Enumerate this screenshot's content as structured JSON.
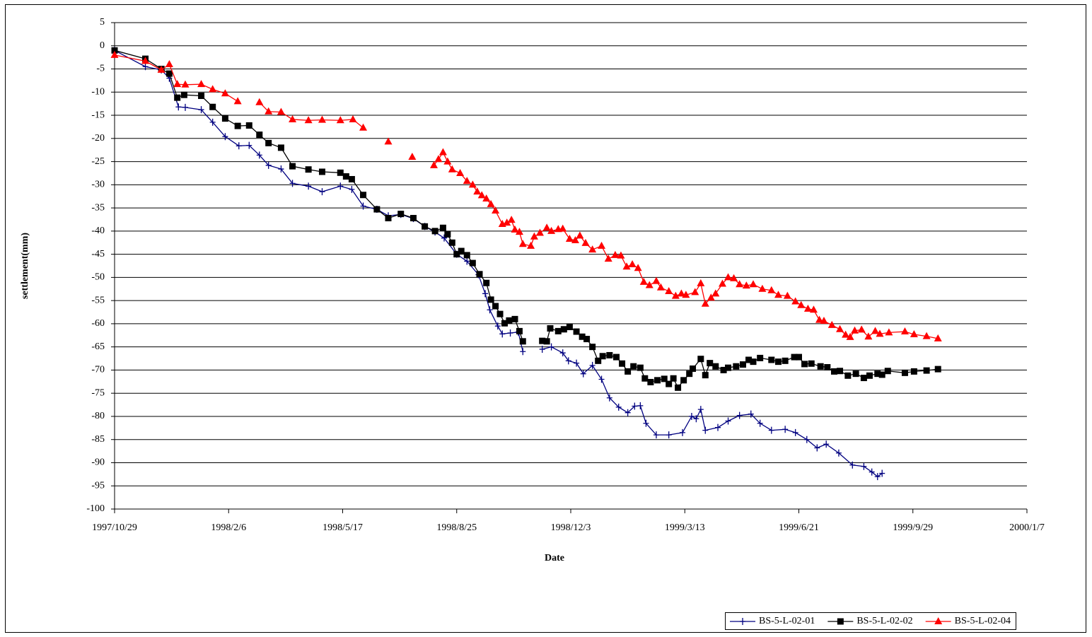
{
  "chart_data": {
    "type": "line",
    "xlabel": "Date",
    "ylabel": "settlement(mm)",
    "xlim": [
      "1997/10/29",
      "2000/1/7"
    ],
    "xticks": [
      "1997/10/29",
      "1998/2/6",
      "1998/5/17",
      "1998/8/25",
      "1998/12/3",
      "1999/3/13",
      "1999/6/21",
      "1999/9/29",
      "2000/1/7"
    ],
    "ylim": [
      -100,
      5
    ],
    "yticks": [
      5,
      0,
      -5,
      -10,
      -15,
      -20,
      -25,
      -30,
      -35,
      -40,
      -45,
      -50,
      -55,
      -60,
      -65,
      -70,
      -75,
      -80,
      -85,
      -90,
      -95,
      -100
    ],
    "grid": true,
    "legend": "lower right",
    "series": [
      {
        "name": "BS-5-L-02-01",
        "color": "#000080",
        "marker": "plus",
        "x": [
          "1997/10/29",
          "1997/11/25",
          "1997/12/9",
          "1997/12/16",
          "1997/12/24",
          "1997/12/30",
          "1998/1/13",
          "1998/1/23",
          "1998/2/3",
          "1998/2/15",
          "1998/2/24",
          "1998/3/5",
          "1998/3/13",
          "1998/3/24",
          "1998/4/3",
          "1998/4/17",
          "1998/4/29",
          "1998/5/15",
          "1998/5/25",
          "1998/6/4",
          "1998/6/16",
          "1998/6/26",
          "1998/7/7",
          "1998/7/18",
          "1998/7/28",
          "1998/8/6",
          "1998/8/14",
          "1998/8/25",
          "1998/9/3",
          "1998/9/13",
          "1998/9/19",
          "1998/9/23",
          "1998/9/30",
          "1998/10/4",
          "1998/10/11",
          "1998/10/18",
          "1998/10/22",
          null,
          "1998/11/8",
          "1998/11/16",
          "1998/11/26",
          "1998/12/1",
          "1998/12/8",
          "1998/12/14",
          "1998/12/22",
          "1998/12/30",
          "1999/1/6",
          "1999/1/14",
          "1999/1/22",
          "1999/1/28",
          "1999/2/2",
          "1999/2/7",
          "1999/2/16",
          "1999/2/27",
          "1999/3/11",
          "1999/3/19",
          "1999/3/23",
          "1999/3/27",
          "1999/3/31",
          "1999/4/11",
          "1999/4/20",
          "1999/4/30",
          "1999/5/10",
          "1999/5/18",
          "1999/5/28",
          "1999/6/9",
          "1999/6/18",
          "1999/6/28",
          "1999/7/7",
          "1999/7/15",
          "1999/7/26",
          "1999/8/7",
          "1999/8/17",
          "1999/8/24",
          "1999/8/29",
          "1999/9/2"
        ],
        "values": [
          -1,
          -4.5,
          -5.2,
          -7,
          -13.2,
          -13.3,
          -13.8,
          -16.5,
          -19.6,
          -21.6,
          -21.5,
          -23.6,
          -25.8,
          -26.6,
          -29.7,
          -30.3,
          -31.5,
          -30.3,
          -31,
          -34.6,
          -35.3,
          -36.7,
          -36.4,
          -37.3,
          -39,
          -40.2,
          -41.5,
          -45,
          -46.5,
          -49.4,
          -53.5,
          -57,
          -60.5,
          -62.2,
          -62,
          -61.8,
          -66,
          null,
          -65.5,
          -65,
          -66.3,
          -68,
          -68.5,
          -70.8,
          -69,
          -72,
          -76,
          -78,
          -79.2,
          -77.8,
          -77.7,
          -81.5,
          -84,
          -84,
          -83.5,
          -80,
          -80.5,
          -78.5,
          -83,
          -82.4,
          -81,
          -79.8,
          -79.5,
          -81.5,
          -83,
          -82.8,
          -83.5,
          -85,
          -86.8,
          -86,
          -87.9,
          -90.5,
          -90.8,
          -92,
          -93,
          -92.3
        ]
      },
      {
        "name": "BS-5-L-02-02",
        "color": "#000000",
        "marker": "square",
        "x": [
          "1997/10/29",
          "1997/11/25",
          "1997/12/9",
          "1997/12/16",
          "1997/12/23",
          "1997/12/29",
          "1998/1/13",
          "1998/1/23",
          "1998/2/3",
          "1998/2/14",
          "1998/2/24",
          "1998/3/5",
          "1998/3/13",
          "1998/3/24",
          "1998/4/3",
          "1998/4/17",
          "1998/4/29",
          "1998/5/15",
          "1998/5/20",
          "1998/5/25",
          "1998/6/4",
          "1998/6/16",
          "1998/6/26",
          "1998/7/7",
          "1998/7/18",
          "1998/7/28",
          "1998/8/6",
          "1998/8/13",
          "1998/8/17",
          "1998/8/21",
          "1998/8/25",
          "1998/8/29",
          "1998/9/3",
          "1998/9/8",
          "1998/9/14",
          "1998/9/20",
          "1998/9/24",
          "1998/9/28",
          "1998/10/2",
          "1998/10/6",
          "1998/10/10",
          "1998/10/15",
          "1998/10/19",
          "1998/10/22",
          null,
          "1998/11/8",
          "1998/11/12",
          "1998/11/15",
          "1998/11/22",
          "1998/11/27",
          "1998/12/2",
          "1998/12/8",
          "1998/12/13",
          "1998/12/17",
          "1998/12/22",
          "1998/12/27",
          "1998/12/31",
          "1999/1/6",
          "1999/1/12",
          "1999/1/17",
          "1999/1/22",
          "1999/1/27",
          "1999/2/2",
          "1999/2/6",
          "1999/2/11",
          "1999/2/17",
          "1999/2/23",
          "1999/2/27",
          "1999/3/3",
          "1999/3/7",
          "1999/3/12",
          "1999/3/17",
          "1999/3/20",
          "1999/3/27",
          "1999/3/31",
          "1999/4/4",
          "1999/4/9",
          "1999/4/16",
          "1999/4/20",
          "1999/4/27",
          "1999/5/3",
          "1999/5/8",
          "1999/5/12",
          "1999/5/18",
          "1999/5/28",
          "1999/6/3",
          "1999/6/9",
          "1999/6/17",
          "1999/6/21",
          "1999/6/26",
          "1999/7/2",
          "1999/7/10",
          "1999/7/16",
          "1999/7/22",
          "1999/7/27",
          "1999/8/3",
          "1999/8/10",
          "1999/8/17",
          "1999/8/22",
          "1999/8/29",
          "1999/9/2",
          "1999/9/7",
          "1999/9/22",
          "1999/9/30",
          "1999/10/11",
          "1999/10/21"
        ],
        "values": [
          -1,
          -2.8,
          -5,
          -6,
          -11.2,
          -10.6,
          -10.8,
          -13.2,
          -15.7,
          -17.3,
          -17.2,
          -19.2,
          -21,
          -22,
          -26,
          -26.7,
          -27.2,
          -27.4,
          -28.2,
          -28.8,
          -32.2,
          -35.3,
          -37.2,
          -36.3,
          -37.2,
          -39,
          -40,
          -39.3,
          -40.7,
          -42.5,
          -45,
          -44.3,
          -45.2,
          -46.9,
          -49.3,
          -51.2,
          -54.8,
          -56.2,
          -57.9,
          -59.9,
          -59.3,
          -59,
          -61.6,
          -63.8,
          null,
          -63.7,
          -63.8,
          -61,
          -61.6,
          -61.2,
          -60.7,
          -61.7,
          -62.8,
          -63.3,
          -65,
          -68,
          -67,
          -66.8,
          -67.2,
          -68.6,
          -70.3,
          -69.2,
          -69.5,
          -71.8,
          -72.6,
          -72.2,
          -71.9,
          -73,
          -71.8,
          -73.8,
          -72.2,
          -70.8,
          -69.7,
          -67.6,
          -71.1,
          -68.5,
          -69.2,
          -70,
          -69.5,
          -69.2,
          -68.8,
          -67.8,
          -68.2,
          -67.4,
          -67.8,
          -68.2,
          -68,
          -67.2,
          -67.2,
          -68.7,
          -68.6,
          -69.2,
          -69.4,
          -70.3,
          -70.2,
          -71.2,
          -70.8,
          -71.7,
          -71.2,
          -70.8,
          -71,
          -70.2,
          -70.6,
          -70.3,
          -70.1,
          -69.8
        ]
      },
      {
        "name": "BS-5-L-02-04",
        "color": "#ff0000",
        "marker": "triangle",
        "x": [
          "1997/10/29",
          "1997/11/25",
          "1997/12/9",
          "1997/12/16",
          "1997/12/23",
          "1997/12/30",
          "1998/1/13",
          "1998/1/23",
          "1998/2/3",
          "1998/2/14",
          null,
          "1998/3/5",
          "1998/3/13",
          "1998/3/24",
          "1998/4/3",
          "1998/4/17",
          "1998/4/29",
          "1998/5/15",
          "1998/5/26",
          "1998/6/4",
          null,
          "1998/6/26",
          null,
          "1998/7/17",
          null,
          "1998/8/5",
          "1998/8/9",
          "1998/8/13",
          "1998/8/17",
          "1998/8/21",
          "1998/8/28",
          "1998/9/3",
          "1998/9/8",
          "1998/9/12",
          "1998/9/16",
          "1998/9/20",
          "1998/9/24",
          "1998/9/28",
          "1998/10/4",
          "1998/10/8",
          "1998/10/12",
          "1998/10/15",
          "1998/10/19",
          "1998/10/22",
          "1998/10/29",
          "1998/11/1",
          "1998/11/6",
          "1998/11/12",
          "1998/11/16",
          "1998/11/22",
          "1998/11/26",
          "1998/12/2",
          "1998/12/7",
          "1998/12/11",
          "1998/12/16",
          "1998/12/22",
          "1998/12/30",
          "1999/1/5",
          "1999/1/11",
          "1999/1/16",
          "1999/1/21",
          "1999/1/26",
          "1999/1/31",
          "1999/2/5",
          "1999/2/10",
          "1999/2/16",
          "1999/2/20",
          "1999/2/27",
          "1999/3/5",
          "1999/3/10",
          "1999/3/14",
          "1999/3/22",
          "1999/3/27",
          "1999/3/31",
          "1999/4/5",
          "1999/4/9",
          "1999/4/15",
          "1999/4/20",
          "1999/4/25",
          "1999/4/30",
          "1999/5/6",
          "1999/5/12",
          "1999/5/20",
          "1999/5/28",
          "1999/6/3",
          "1999/6/11",
          "1999/6/18",
          "1999/6/23",
          "1999/6/29",
          "1999/7/4",
          "1999/7/9",
          "1999/7/13",
          "1999/7/20",
          "1999/7/27",
          "1999/8/1",
          "1999/8/5",
          "1999/8/9",
          "1999/8/15",
          "1999/8/21",
          "1999/8/27",
          "1999/8/31",
          "1999/9/8",
          "1999/9/22",
          "1999/9/30",
          "1999/10/11",
          "1999/10/21"
        ],
        "values": [
          -2,
          -3.3,
          -5.2,
          -4,
          -8.3,
          -8.4,
          -8.3,
          -9.4,
          -10.3,
          -12,
          null,
          -12.2,
          -14.2,
          -14.3,
          -15.9,
          -16.1,
          -16,
          -16.1,
          -15.9,
          -17.7,
          null,
          -20.7,
          null,
          -24,
          null,
          -25.8,
          -24.5,
          -23,
          -25,
          -26.7,
          -27.5,
          -29.2,
          -30,
          -31.5,
          -32.3,
          -33,
          -34.2,
          -35.6,
          -38.5,
          -38.2,
          -37.6,
          -39.7,
          -40.2,
          -42.8,
          -43.2,
          -41.2,
          -40.4,
          -39.3,
          -40,
          -39.6,
          -39.5,
          -41.7,
          -42,
          -41,
          -42.6,
          -44,
          -43.2,
          -46,
          -45.2,
          -45.3,
          -47.7,
          -47.2,
          -48,
          -51,
          -51.7,
          -50.8,
          -52.2,
          -53,
          -54,
          -53.5,
          -53.8,
          -53.2,
          -51.3,
          -55.7,
          -54.4,
          -53.5,
          -51.4,
          -50,
          -50.2,
          -51.5,
          -51.8,
          -51.5,
          -52.5,
          -52.8,
          -53.8,
          -54,
          -55.2,
          -56,
          -56.8,
          -57,
          -59.2,
          -59.4,
          -60.3,
          -61.2,
          -62.4,
          -62.9,
          -61.5,
          -61.3,
          -62.8,
          -61.6,
          -62.2,
          -61.9,
          -61.7,
          -62.3,
          -62.7,
          -63.2
        ]
      }
    ]
  }
}
